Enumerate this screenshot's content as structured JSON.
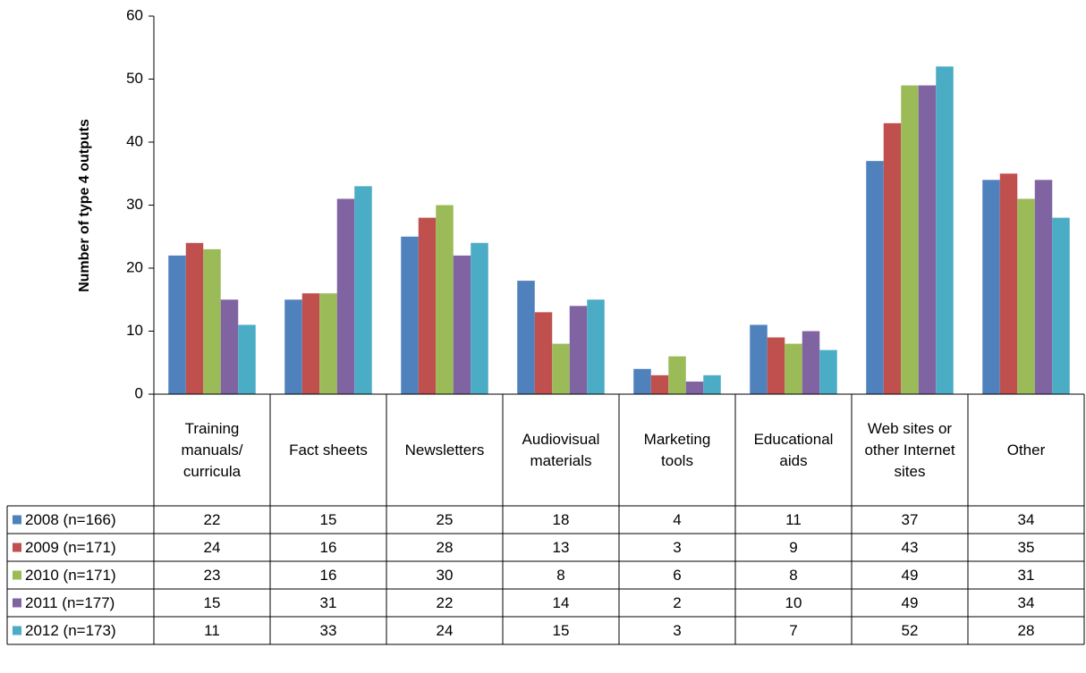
{
  "chart_data": {
    "type": "bar",
    "y_axis_label": "Number of type 4 outputs",
    "categories": [
      "Training manuals/ curricula",
      "Fact sheets",
      "Newsletters",
      "Audiovisual materials",
      "Marketing tools",
      "Educational aids",
      "Web sites or other Internet sites",
      "Other"
    ],
    "series": [
      {
        "name": "2008 (n=166)",
        "color": "#4f81bd",
        "values": [
          22,
          15,
          25,
          18,
          4,
          11,
          37,
          34
        ]
      },
      {
        "name": "2009 (n=171)",
        "color": "#c0504d",
        "values": [
          24,
          16,
          28,
          13,
          3,
          9,
          43,
          35
        ]
      },
      {
        "name": "2010 (n=171)",
        "color": "#9bbb59",
        "values": [
          23,
          16,
          30,
          8,
          6,
          8,
          49,
          31
        ]
      },
      {
        "name": "2011 (n=177)",
        "color": "#8064a2",
        "values": [
          15,
          31,
          22,
          14,
          2,
          10,
          49,
          34
        ]
      },
      {
        "name": "2012 (n=173)",
        "color": "#4bacc6",
        "values": [
          11,
          33,
          24,
          15,
          3,
          7,
          52,
          28
        ]
      }
    ],
    "ylim": [
      0,
      60
    ],
    "yticks": [
      0,
      10,
      20,
      30,
      40,
      50,
      60
    ],
    "grid": false,
    "data_table": true
  }
}
